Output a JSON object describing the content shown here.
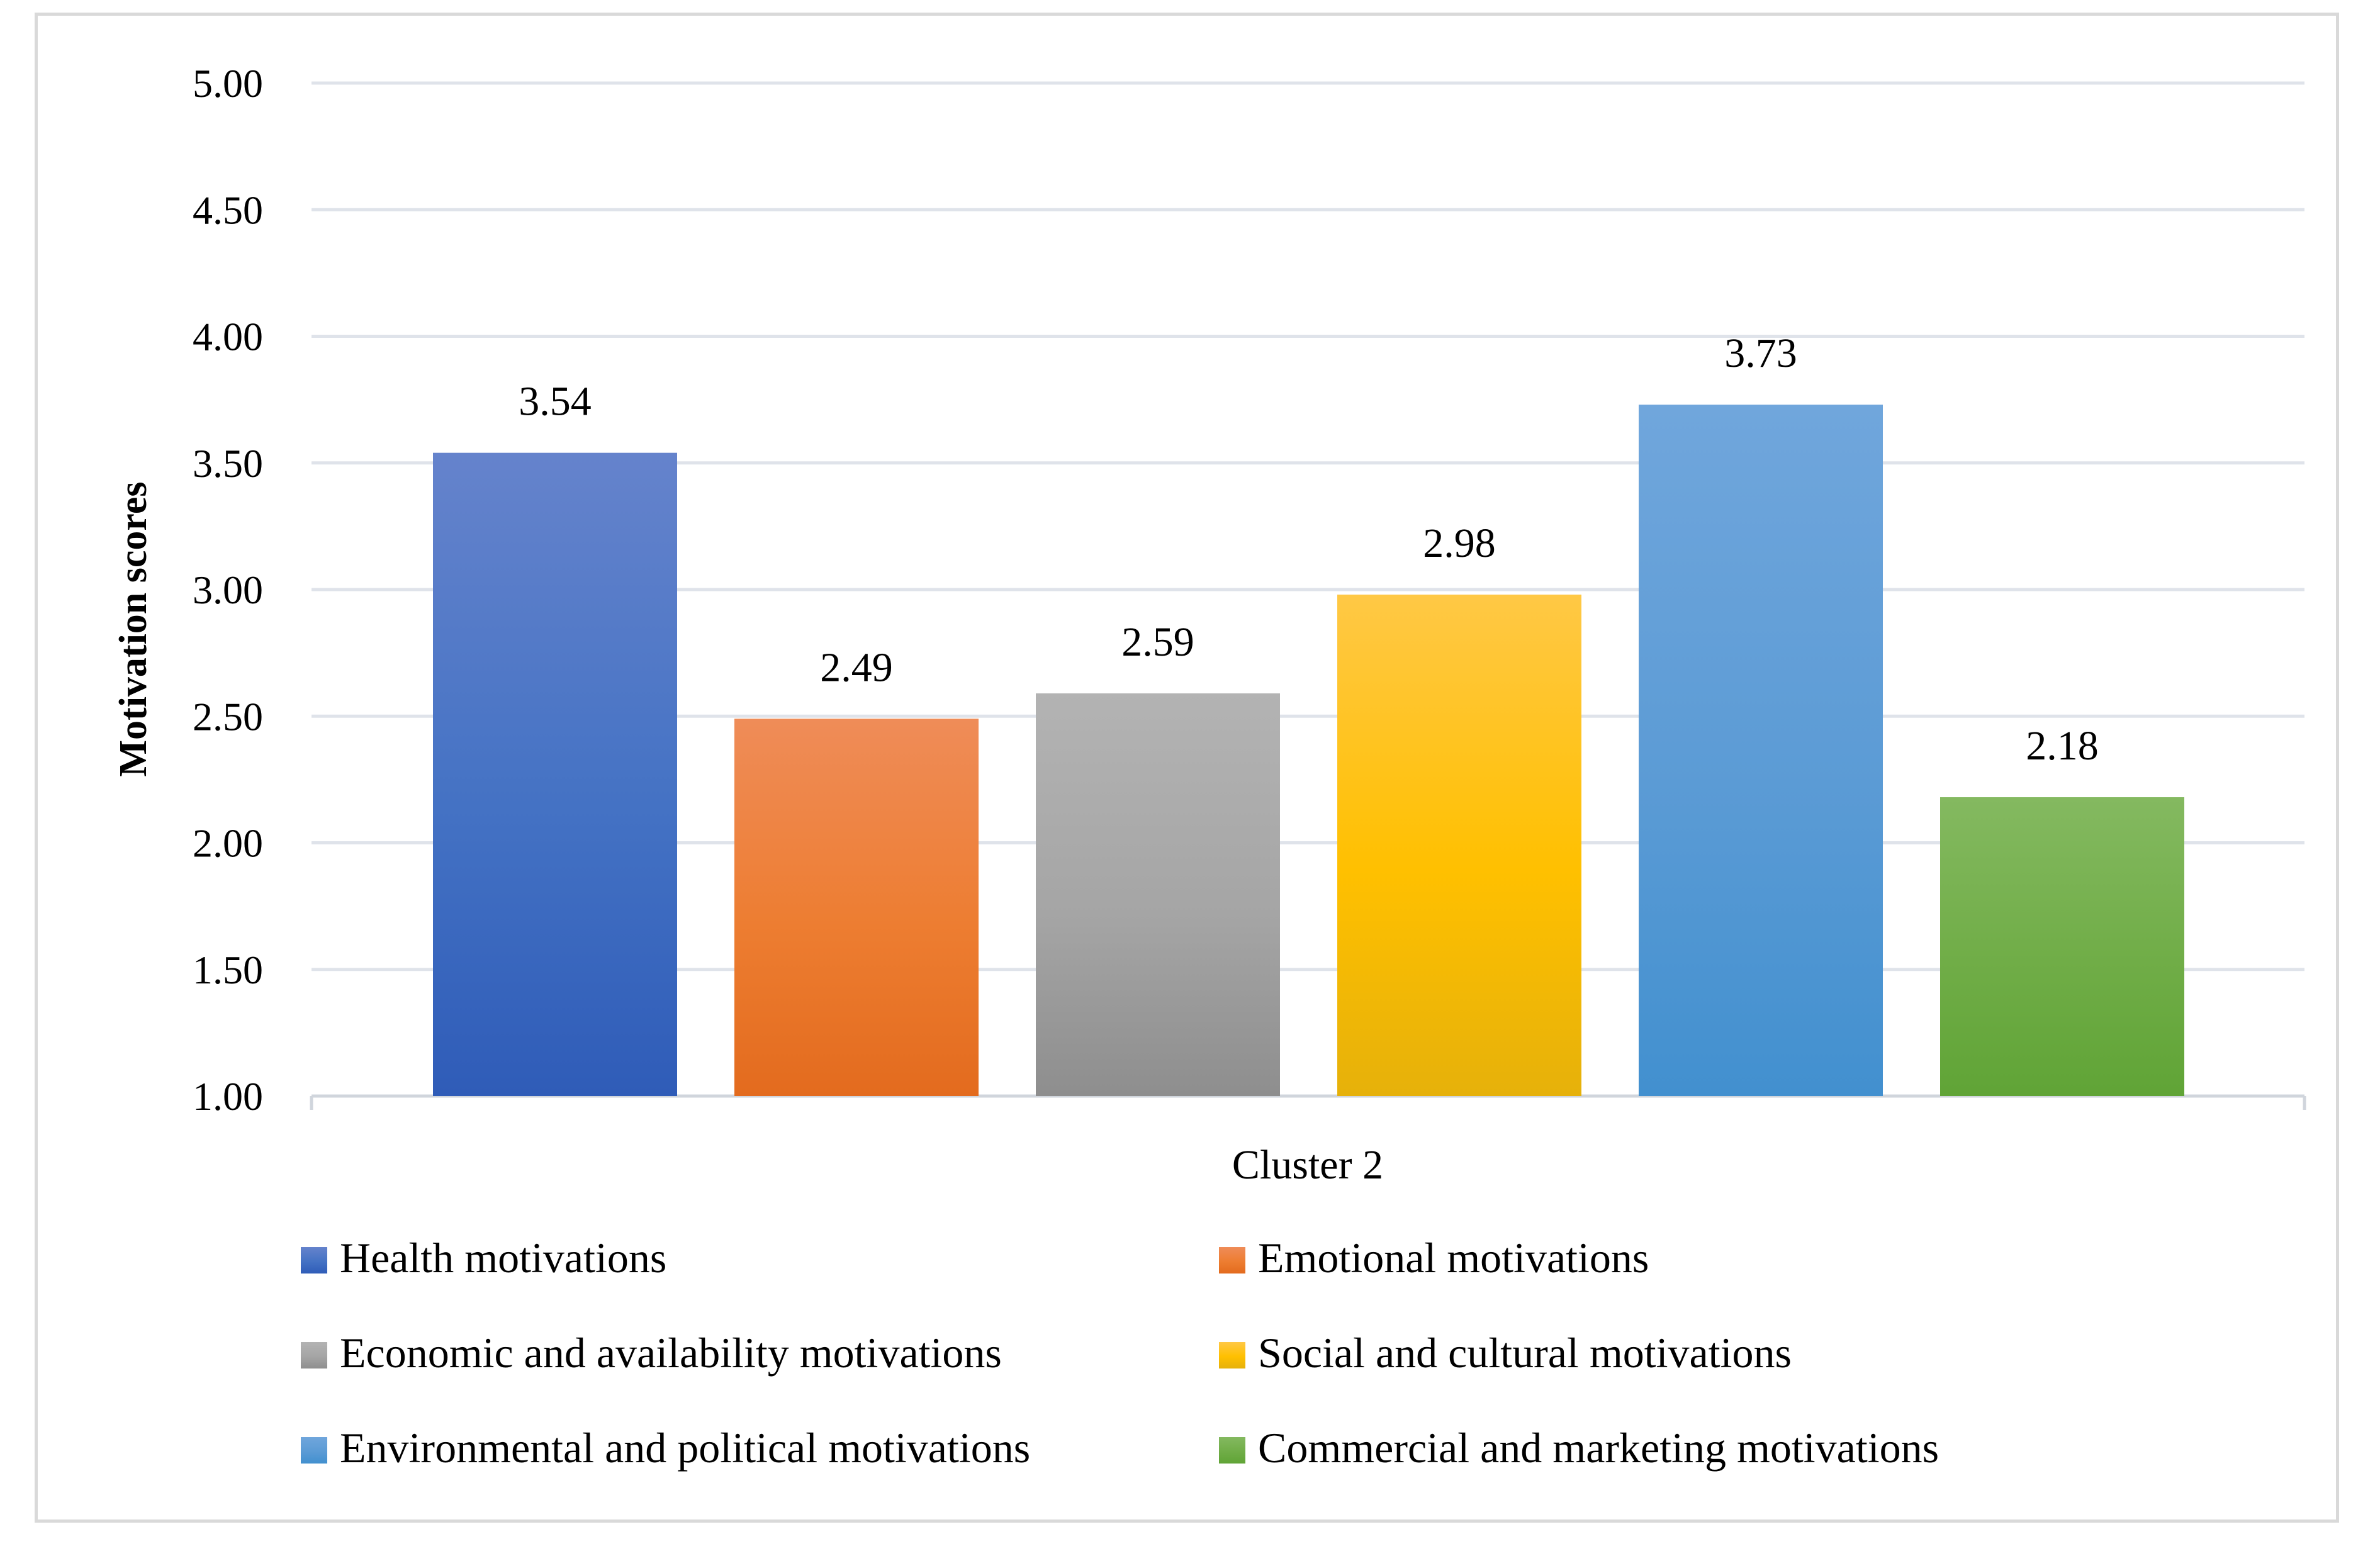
{
  "chart_data": {
    "type": "bar",
    "title": "",
    "xlabel": "Cluster 2",
    "ylabel": "Motivation scores",
    "ylim": [
      1.0,
      5.0
    ],
    "yticks": [
      "1.00",
      "1.50",
      "2.00",
      "2.50",
      "3.00",
      "3.50",
      "4.00",
      "4.50",
      "5.00"
    ],
    "grid": true,
    "legend_position": "bottom",
    "categories": [
      "Cluster 2"
    ],
    "series": [
      {
        "name": "Health motivations",
        "values": [
          3.54
        ],
        "label": "3.54",
        "color": "#4472c4",
        "color_top": "#6583cc",
        "color_bottom": "#2f5cb8"
      },
      {
        "name": "Emotional motivations",
        "values": [
          2.49
        ],
        "label": "2.49",
        "color": "#ed7d31",
        "color_top": "#ef8c58",
        "color_bottom": "#e36b1e"
      },
      {
        "name": "Economic and availability motivations",
        "values": [
          2.59
        ],
        "label": "2.59",
        "color": "#a5a5a5",
        "color_top": "#b3b3b3",
        "color_bottom": "#8e8e8e"
      },
      {
        "name": "Social and cultural motivations",
        "values": [
          2.98
        ],
        "label": "2.98",
        "color": "#ffc000",
        "color_top": "#ffc845",
        "color_bottom": "#e6b10a"
      },
      {
        "name": "Environmental and political motivations",
        "values": [
          3.73
        ],
        "label": "3.73",
        "color": "#5b9bd5",
        "color_top": "#70a6dc",
        "color_bottom": "#4290cf"
      },
      {
        "name": "Commercial and marketing motivations",
        "values": [
          2.18
        ],
        "label": "2.18",
        "color": "#70ad47",
        "color_top": "#84b960",
        "color_bottom": "#60a436"
      }
    ]
  }
}
